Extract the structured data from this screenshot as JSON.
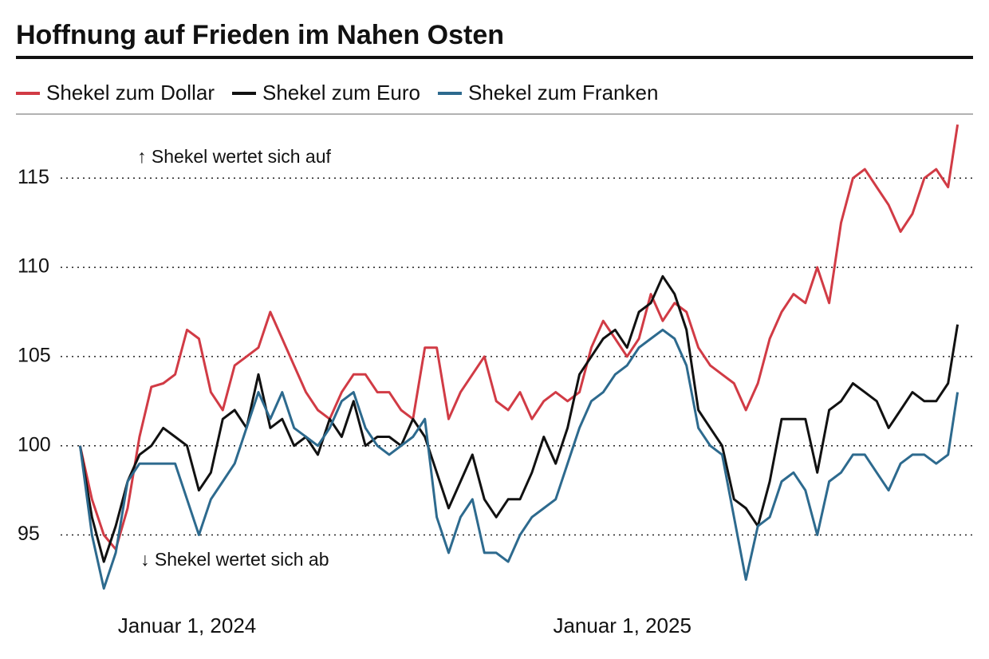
{
  "chart_data": {
    "type": "line",
    "title": "Hoffnung auf Frieden im Nahen Osten",
    "annotations": [
      "↑ Shekel wertet sich auf",
      "↓ Shekel wertet sich ab"
    ],
    "x": [
      "2023-10-03",
      "2023-10-13",
      "2023-10-23",
      "2023-11-02",
      "2023-11-12",
      "2023-11-22",
      "2023-12-02",
      "2023-12-12",
      "2023-12-22",
      "2024-01-01",
      "2024-01-11",
      "2024-01-21",
      "2024-01-31",
      "2024-02-10",
      "2024-02-20",
      "2024-03-01",
      "2024-03-11",
      "2024-03-21",
      "2024-03-31",
      "2024-04-10",
      "2024-04-20",
      "2024-04-30",
      "2024-05-10",
      "2024-05-20",
      "2024-05-30",
      "2024-06-09",
      "2024-06-19",
      "2024-06-29",
      "2024-07-09",
      "2024-07-19",
      "2024-07-29",
      "2024-08-08",
      "2024-08-18",
      "2024-08-28",
      "2024-09-07",
      "2024-09-17",
      "2024-09-27",
      "2024-10-07",
      "2024-10-17",
      "2024-10-27",
      "2024-11-06",
      "2024-11-16",
      "2024-11-26",
      "2024-12-06",
      "2024-12-16",
      "2024-12-26",
      "2025-01-05",
      "2025-01-15",
      "2025-01-25",
      "2025-02-04",
      "2025-02-14",
      "2025-02-24",
      "2025-03-06",
      "2025-03-16",
      "2025-03-26",
      "2025-04-05",
      "2025-04-15",
      "2025-04-25",
      "2025-05-05",
      "2025-05-15",
      "2025-05-25",
      "2025-06-04",
      "2025-06-14",
      "2025-06-24",
      "2025-07-04",
      "2025-07-14",
      "2025-07-24",
      "2025-08-03",
      "2025-08-13",
      "2025-08-23",
      "2025-09-02",
      "2025-09-12",
      "2025-09-22",
      "2025-10-02",
      "2025-10-10"
    ],
    "series": [
      {
        "name": "Shekel zum Dollar",
        "color": "#d13b45",
        "values": [
          100,
          97,
          95,
          94.2,
          96.5,
          100.5,
          103.3,
          103.5,
          104,
          106.5,
          106,
          103,
          102,
          104.5,
          105,
          105.5,
          107.5,
          106,
          104.5,
          103,
          102,
          101.5,
          103,
          104,
          104,
          103,
          103,
          102,
          101.5,
          105.5,
          105.5,
          101.5,
          103,
          104,
          105,
          102.5,
          102,
          103,
          101.5,
          102.5,
          103,
          102.5,
          103,
          105.5,
          107,
          106,
          105,
          106,
          108.5,
          107,
          108,
          107.5,
          105.5,
          104.5,
          104,
          103.5,
          102,
          103.5,
          106,
          107.5,
          108.5,
          108,
          110,
          108,
          112.5,
          115,
          115.5,
          114.5,
          113.5,
          112,
          113,
          115,
          115.5,
          114.5,
          118
        ]
      },
      {
        "name": "Shekel zum Euro",
        "color": "#111111",
        "values": [
          100,
          96,
          93.5,
          95.5,
          98,
          99.5,
          100,
          101,
          100.5,
          100,
          97.5,
          98.5,
          101.5,
          102,
          101,
          104,
          101,
          101.5,
          100,
          100.5,
          99.5,
          101.5,
          100.5,
          102.5,
          100,
          100.5,
          100.5,
          100,
          101.5,
          100.5,
          98.5,
          96.5,
          98,
          99.5,
          97,
          96,
          97,
          97,
          98.5,
          100.5,
          99,
          101,
          104,
          105,
          106,
          106.5,
          105.5,
          107.5,
          108,
          109.5,
          108.5,
          106.5,
          102,
          101,
          100,
          97,
          96.5,
          95.5,
          98,
          101.5,
          101.5,
          101.5,
          98.5,
          102,
          102.5,
          103.5,
          103,
          102.5,
          101,
          102,
          103,
          102.5,
          102.5,
          103.5,
          106.8
        ]
      },
      {
        "name": "Shekel zum Franken",
        "color": "#2d6a8e",
        "values": [
          100,
          95,
          92,
          94,
          98,
          99,
          99,
          99,
          99,
          97,
          95,
          97,
          98,
          99,
          101,
          103,
          101.5,
          103,
          101,
          100.5,
          100,
          101,
          102.5,
          103,
          101,
          100,
          99.5,
          100,
          100.5,
          101.5,
          96,
          94,
          96,
          97,
          94,
          94,
          93.5,
          95,
          96,
          96.5,
          97,
          99,
          101,
          102.5,
          103,
          104,
          104.5,
          105.5,
          106,
          106.5,
          106,
          104.5,
          101,
          100,
          99.5,
          96,
          92.5,
          95.5,
          96,
          98,
          98.5,
          97.5,
          95,
          98,
          98.5,
          99.5,
          99.5,
          98.5,
          97.5,
          99,
          99.5,
          99.5,
          99,
          99.5,
          103
        ]
      }
    ],
    "xlim": [
      "2023-09-18",
      "2025-10-23"
    ],
    "xticks": [
      {
        "value": "2024-01-01",
        "label": "Januar 1, 2024"
      },
      {
        "value": "2025-01-01",
        "label": "Januar 1, 2025"
      }
    ],
    "ylim": [
      91,
      118.5
    ],
    "yticks": [
      95,
      100,
      105,
      110,
      115
    ],
    "grid": true
  }
}
